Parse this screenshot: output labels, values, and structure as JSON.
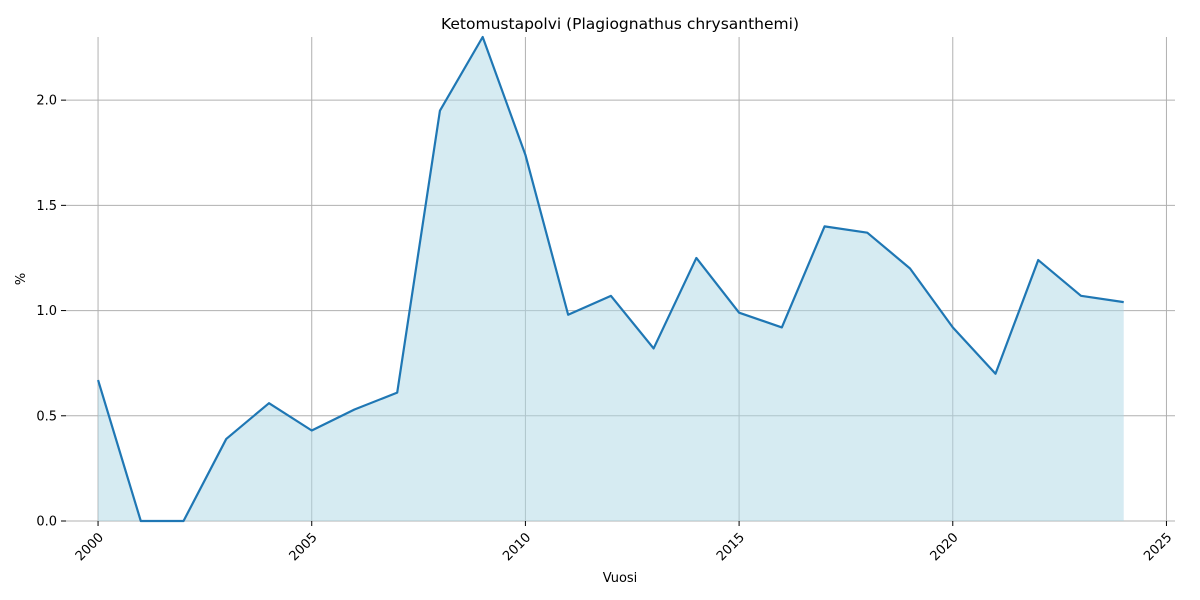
{
  "chart_data": {
    "type": "area",
    "title": "Ketomustapolvi (Plagiognathus chrysanthemi)",
    "xlabel": "Vuosi",
    "ylabel": "%",
    "xlim": [
      1999.25,
      2025.2
    ],
    "ylim": [
      0,
      2.3
    ],
    "x_ticks": [
      2000,
      2005,
      2010,
      2015,
      2020,
      2025
    ],
    "y_ticks": [
      0.0,
      0.5,
      1.0,
      1.5,
      2.0
    ],
    "y_tick_labels": [
      "0.0",
      "0.5",
      "1.0",
      "1.5",
      "2.0"
    ],
    "grid": true,
    "line_color": "#1f77b4",
    "fill_color": "#add8e6",
    "series": [
      {
        "x": [
          2000,
          2001,
          2002,
          2003,
          2004,
          2005,
          2006,
          2007,
          2008,
          2009,
          2010,
          2011,
          2012,
          2013,
          2014,
          2015,
          2016,
          2017,
          2018,
          2019,
          2020,
          2021,
          2022,
          2023,
          2024
        ],
        "values": [
          0.67,
          0.0,
          0.0,
          0.39,
          0.56,
          0.43,
          0.53,
          0.61,
          1.95,
          2.3,
          1.74,
          0.98,
          1.07,
          0.82,
          1.25,
          0.99,
          0.92,
          1.4,
          1.37,
          1.2,
          0.92,
          0.7,
          1.24,
          1.07,
          1.04
        ]
      }
    ]
  }
}
